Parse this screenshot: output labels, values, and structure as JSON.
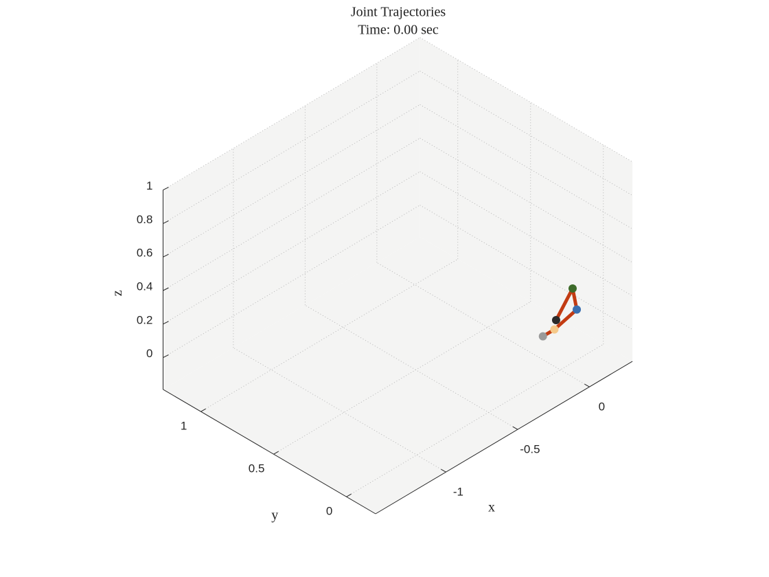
{
  "chart_data": {
    "type": "line3d",
    "title": "Joint Trajectories",
    "subtitle": "Time: 0.00 sec",
    "xlabel": "x",
    "ylabel": "y",
    "zlabel": "z",
    "xlim": [
      -1.49,
      0.3
    ],
    "ylim": [
      -0.2,
      1.26
    ],
    "zlim": [
      -0.19,
      1
    ],
    "xticks": [
      -1,
      -0.5,
      0
    ],
    "yticks": [
      0,
      0.5,
      1
    ],
    "zticks": [
      0,
      0.2,
      0.4,
      0.6,
      0.8,
      1
    ],
    "grid": true,
    "link_color": "#c23b12",
    "joints": {
      "x": [
        -0.05,
        0.03,
        0.186,
        0.157,
        0.042
      ],
      "y": [
        0.07,
        0.07,
        0.07,
        0.07,
        0.07
      ],
      "z": [
        0,
        0,
        0.04,
        0.18,
        0.05
      ],
      "colors": [
        "#9a9a9a",
        "#f5c98a",
        "#3a6fb0",
        "#3d6b2a",
        "#2a2a2a"
      ]
    }
  }
}
